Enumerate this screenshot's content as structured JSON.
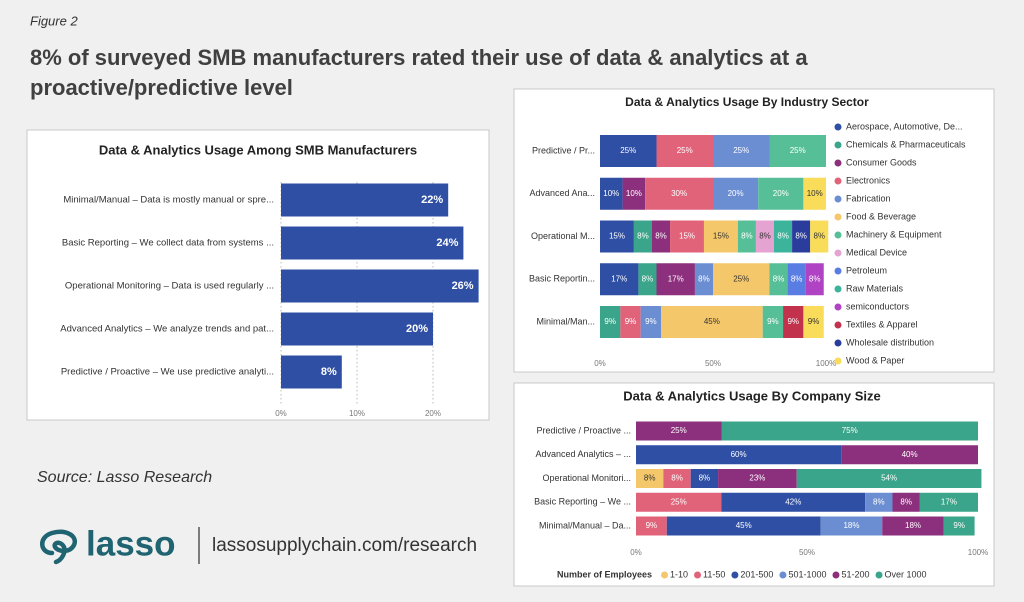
{
  "figure_label": "Figure 2",
  "headline": [
    "8% of surveyed SMB manufacturers rated their use of data & analytics at a",
    "proactive/predictive level"
  ],
  "source": "Source: Lasso Research",
  "logo_text": "lasso",
  "url": "lassosupplychain.com/research",
  "chart_data": [
    {
      "type": "hbar",
      "title": "Data & Analytics Usage Among SMB Manufacturers",
      "categories": [
        "Minimal/Manual – Data is mostly manual or spre...",
        "Basic Reporting – We collect data from systems ...",
        "Operational Monitoring – Data is used regularly ...",
        "Advanced Analytics – We analyze trends and pat...",
        "Predictive / Proactive – We use predictive analyti..."
      ],
      "values": [
        22,
        24,
        26,
        20,
        8
      ],
      "value_labels": [
        "22%",
        "24%",
        "26%",
        "20%",
        "8%"
      ],
      "color": "#2f4fa5",
      "xlim": [
        0,
        26
      ],
      "xticks": [
        {
          "value": 0,
          "label": "0%"
        },
        {
          "value": 10,
          "label": "10%"
        },
        {
          "value": 20,
          "label": "20%"
        }
      ],
      "grid": true
    },
    {
      "type": "stacked_hbar",
      "title": "Data & Analytics Usage By Industry Sector",
      "categories": [
        "Predictive / Pr...",
        "Advanced Ana...",
        "Operational M...",
        "Basic Reportin...",
        "Minimal/Man..."
      ],
      "legend": "right",
      "xlim": [
        0,
        100
      ],
      "xticks": [
        {
          "value": 0,
          "label": "0%"
        },
        {
          "value": 50,
          "label": "50%"
        },
        {
          "value": 100,
          "label": "100%"
        }
      ],
      "series": [
        {
          "name": "Aerospace, Automotive, De...",
          "color": "#2f4fa5",
          "values": [
            25,
            10,
            15,
            17,
            null
          ],
          "value_labels": [
            "25%",
            "10%",
            "15%",
            "17%",
            null
          ]
        },
        {
          "name": "Chemicals & Pharmaceuticals",
          "color": "#3aa58a",
          "values": [
            null,
            null,
            8,
            8,
            9
          ],
          "value_labels": [
            null,
            null,
            "8%",
            "8%",
            "9%"
          ]
        },
        {
          "name": "Consumer Goods",
          "color": "#8c2f7c",
          "values": [
            null,
            10,
            8,
            17,
            null
          ],
          "value_labels": [
            null,
            "10%",
            "8%",
            "17%",
            null
          ]
        },
        {
          "name": "Electronics",
          "color": "#e0637a",
          "values": [
            25,
            30,
            15,
            null,
            9
          ],
          "value_labels": [
            "25%",
            "30%",
            "15%",
            null,
            "9%"
          ]
        },
        {
          "name": "Fabrication",
          "color": "#6b8ed3",
          "values": [
            25,
            20,
            null,
            8,
            9
          ],
          "value_labels": [
            "25%",
            "20%",
            null,
            "8%",
            "9%"
          ]
        },
        {
          "name": "Food & Beverage",
          "color": "#f4c76a",
          "values": [
            null,
            null,
            15,
            25,
            45
          ],
          "value_labels": [
            null,
            null,
            "15%",
            "25%",
            "45%"
          ]
        },
        {
          "name": "Machinery & Equipment",
          "color": "#56bf98",
          "values": [
            25,
            20,
            8,
            8,
            9
          ],
          "value_labels": [
            "25%",
            "20%",
            "8%",
            "8%",
            "9%"
          ]
        },
        {
          "name": "Medical Device",
          "color": "#e5a3d2",
          "values": [
            null,
            null,
            8,
            null,
            null
          ],
          "value_labels": [
            null,
            null,
            "8%",
            null,
            null
          ]
        },
        {
          "name": "Petroleum",
          "color": "#5a7de3",
          "values": [
            null,
            null,
            null,
            8,
            null
          ],
          "value_labels": [
            null,
            null,
            null,
            "8%",
            null
          ]
        },
        {
          "name": "Raw Materials",
          "color": "#3cb39b",
          "values": [
            null,
            null,
            8,
            null,
            null
          ],
          "value_labels": [
            null,
            null,
            "8%",
            null,
            null
          ]
        },
        {
          "name": "semiconductors",
          "color": "#b043c4",
          "values": [
            null,
            null,
            null,
            8,
            null
          ],
          "value_labels": [
            null,
            null,
            null,
            "8%",
            null
          ]
        },
        {
          "name": "Textiles & Apparel",
          "color": "#c2324c",
          "values": [
            null,
            null,
            null,
            null,
            9
          ],
          "value_labels": [
            null,
            null,
            null,
            null,
            "9%"
          ]
        },
        {
          "name": "Wholesale distribution",
          "color": "#2a3d9c",
          "values": [
            null,
            null,
            8,
            null,
            null
          ],
          "value_labels": [
            null,
            null,
            "8%",
            null,
            null
          ]
        },
        {
          "name": "Wood & Paper",
          "color": "#f8dc5a",
          "values": [
            null,
            10,
            8,
            null,
            9
          ],
          "value_labels": [
            null,
            "10%",
            "8%",
            null,
            "9%"
          ]
        }
      ]
    },
    {
      "type": "stacked_hbar",
      "title": "Data & Analytics Usage By Company Size",
      "categories": [
        "Predictive / Proactive ...",
        "Advanced Analytics – ...",
        "Operational Monitori...",
        "Basic Reporting – We ...",
        "Minimal/Manual – Da..."
      ],
      "legend": "bottom",
      "legend_title": "Number of Employees",
      "xlim": [
        0,
        100
      ],
      "xticks": [
        {
          "value": 0,
          "label": "0%"
        },
        {
          "value": 50,
          "label": "50%"
        },
        {
          "value": 100,
          "label": "100%"
        }
      ],
      "series": [
        {
          "name": "1-10",
          "color": "#f4c76a",
          "values": [
            null,
            null,
            8,
            null,
            null
          ],
          "value_labels": [
            null,
            null,
            "8%",
            null,
            null
          ]
        },
        {
          "name": "11-50",
          "color": "#e0637a",
          "values": [
            null,
            null,
            8,
            25,
            9
          ],
          "value_labels": [
            null,
            null,
            "8%",
            "25%",
            "9%"
          ]
        },
        {
          "name": "201-500",
          "color": "#2f4fa5",
          "values": [
            null,
            60,
            8,
            42,
            45
          ],
          "value_labels": [
            null,
            "60%",
            "8%",
            "42%",
            "45%"
          ]
        },
        {
          "name": "501-1000",
          "color": "#6b8ed3",
          "values": [
            null,
            null,
            null,
            8,
            18
          ],
          "value_labels": [
            null,
            null,
            null,
            "8%",
            "18%"
          ]
        },
        {
          "name": "51-200",
          "color": "#8c2f7c",
          "values": [
            25,
            40,
            23,
            8,
            18
          ],
          "value_labels": [
            "25%",
            "40%",
            "23%",
            "8%",
            "18%"
          ]
        },
        {
          "name": "Over 1000",
          "color": "#3aa58a",
          "values": [
            75,
            null,
            54,
            17,
            9
          ],
          "value_labels": [
            "75%",
            null,
            "54%",
            "17%",
            "9%"
          ]
        }
      ]
    }
  ]
}
